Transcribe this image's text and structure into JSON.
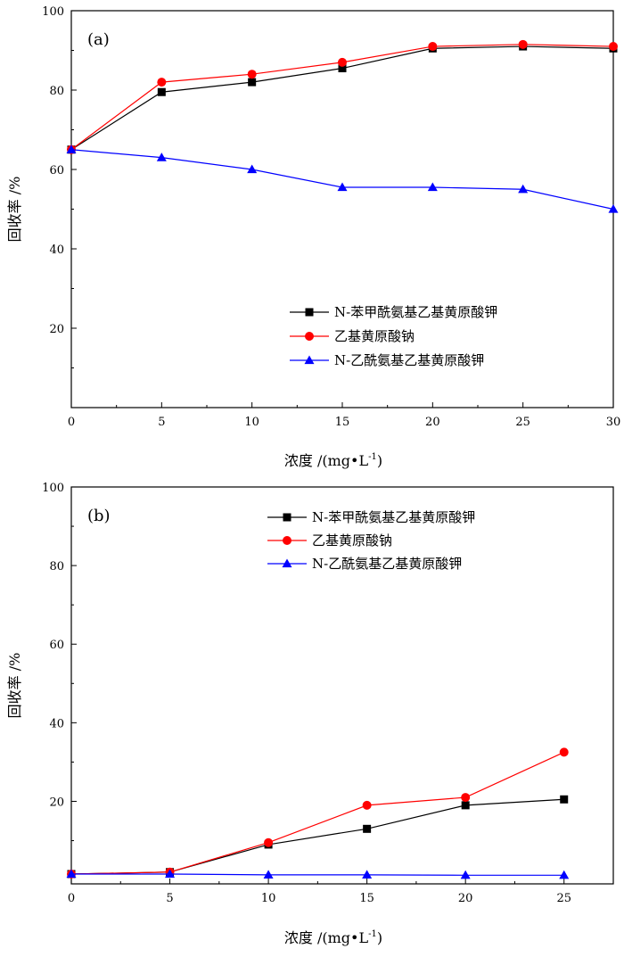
{
  "chart_data": [
    {
      "type": "line",
      "panel_label": "(a)",
      "xlabel": "浓度 /(mg•L",
      "xlabel_sup": "-1",
      "xlabel_close": ")",
      "ylabel": "回收率 /%",
      "xlim": [
        0,
        30
      ],
      "ylim": [
        0,
        100
      ],
      "xticks": [
        0,
        5,
        10,
        15,
        20,
        25,
        30
      ],
      "yticks": [
        20,
        40,
        60,
        80,
        100
      ],
      "grid": false,
      "legend_position": "bottom-right",
      "x": [
        0,
        5,
        10,
        15,
        20,
        25,
        30
      ],
      "series": [
        {
          "name": "N-苯甲酰氨基乙基黄原酸钾",
          "color": "#000000",
          "marker": "square",
          "values": [
            65,
            79.5,
            82,
            85.5,
            90.5,
            91,
            90.5
          ]
        },
        {
          "name": "乙基黄原酸钠",
          "color": "#ff0000",
          "marker": "circle",
          "values": [
            65,
            82,
            84,
            87,
            91,
            91.5,
            91
          ]
        },
        {
          "name": "N-乙酰氨基乙基黄原酸钾",
          "color": "#0000ff",
          "marker": "triangle",
          "values": [
            65,
            63,
            60,
            55.5,
            55.5,
            55,
            50
          ]
        }
      ]
    },
    {
      "type": "line",
      "panel_label": "(b)",
      "xlabel": "浓度 /(mg•L",
      "xlabel_sup": "-1",
      "xlabel_close": ")",
      "ylabel": "回收率 /%",
      "xlim": [
        0,
        27.5
      ],
      "ylim": [
        -1,
        100
      ],
      "xticks": [
        0,
        5,
        10,
        15,
        20,
        25
      ],
      "yticks": [
        20,
        40,
        60,
        80,
        100
      ],
      "grid": false,
      "legend_position": "top-right",
      "x": [
        0,
        5,
        10,
        15,
        20,
        25
      ],
      "series": [
        {
          "name": "N-苯甲酰氨基乙基黄原酸钾",
          "color": "#000000",
          "marker": "square",
          "values": [
            1.5,
            2,
            9,
            13,
            19,
            20.5
          ]
        },
        {
          "name": "乙基黄原酸钠",
          "color": "#ff0000",
          "marker": "circle",
          "values": [
            1.5,
            2,
            9.5,
            19,
            21,
            32.5
          ]
        },
        {
          "name": "N-乙酰氨基乙基黄原酸钾",
          "color": "#0000ff",
          "marker": "triangle",
          "values": [
            1.5,
            1.5,
            1.3,
            1.3,
            1.2,
            1.2
          ]
        }
      ]
    }
  ]
}
